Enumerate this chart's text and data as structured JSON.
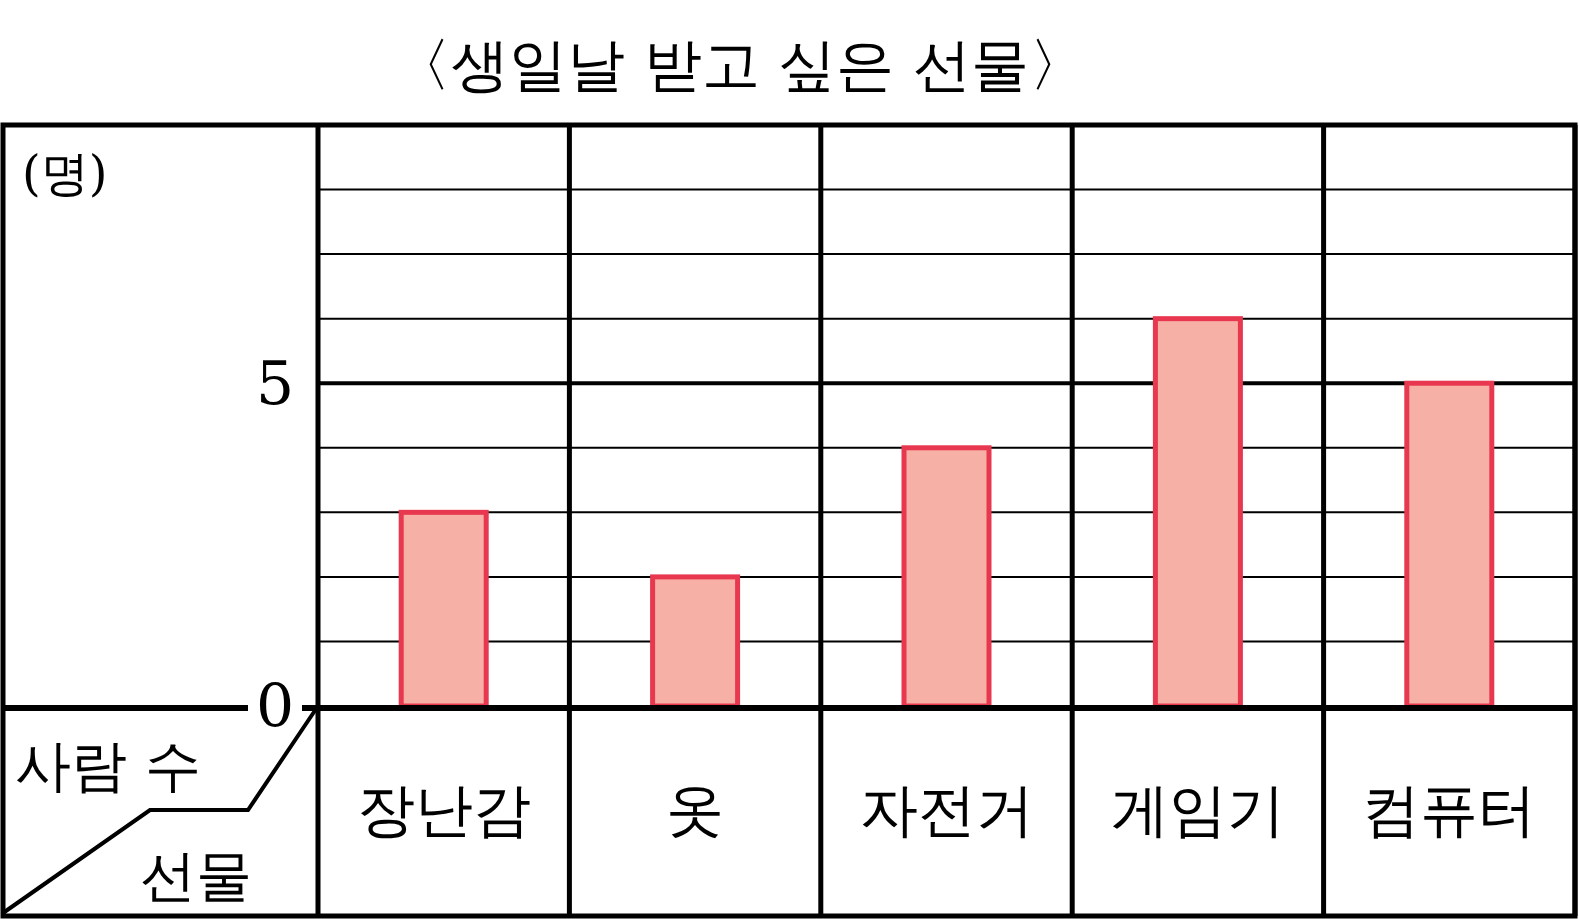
{
  "chart_data": {
    "type": "bar",
    "title": "〈생일날 받고 싶은 선물〉",
    "ylabel": "(명)",
    "xlabel": "선물",
    "annotations": [
      "사람 수"
    ],
    "categories": [
      "장난감",
      "옷",
      "자전거",
      "게임기",
      "컴퓨터"
    ],
    "values": [
      3,
      2,
      4,
      6,
      5
    ],
    "color": "#f7b0a6",
    "ref_lines": [
      {
        "axis": "y",
        "value": 5,
        "color": "#000000"
      }
    ],
    "ylim": [
      0,
      9
    ],
    "yticks": [
      0,
      {
        "value": 1,
        "label": null
      },
      {
        "value": 2,
        "label": null
      },
      {
        "value": 3,
        "label": null
      },
      {
        "value": 4,
        "label": null
      },
      5,
      {
        "value": 6,
        "label": null
      },
      {
        "value": 7,
        "label": null
      },
      {
        "value": 8,
        "label": null
      },
      {
        "value": 9,
        "label": null
      }
    ],
    "grid": "y"
  }
}
